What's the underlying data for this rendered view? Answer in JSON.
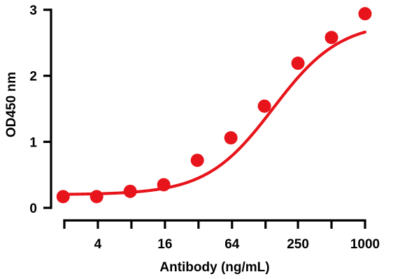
{
  "chart_data": {
    "type": "scatter",
    "xlabel": "Antibody (ng/mL)",
    "ylabel": "OD450 nm",
    "x_scale": "log2",
    "xlim": [
      2,
      1000
    ],
    "ylim": [
      0,
      3
    ],
    "x_ticks": [
      2,
      4,
      8,
      16,
      32,
      64,
      128,
      250,
      500,
      1000
    ],
    "x_tick_labels": [
      "",
      "4",
      "",
      "16",
      "",
      "64",
      "",
      "250",
      "",
      "1000"
    ],
    "y_ticks": [
      0,
      1,
      2,
      3
    ],
    "y_tick_labels": [
      "0",
      "1",
      "2",
      "3"
    ],
    "grid": false,
    "legend": "none",
    "color": "#e8141b",
    "series": [
      {
        "x": [
          1.95,
          3.9,
          7.8,
          15.6,
          31.25,
          62.5,
          125,
          250,
          500,
          1000
        ],
        "y": [
          0.17,
          0.17,
          0.25,
          0.35,
          0.72,
          1.06,
          1.54,
          2.19,
          2.58,
          2.94
        ]
      }
    ],
    "fit_curve": {
      "bottom": 0.2,
      "top": 2.82,
      "ec50": 150,
      "hill": 1.45
    }
  }
}
